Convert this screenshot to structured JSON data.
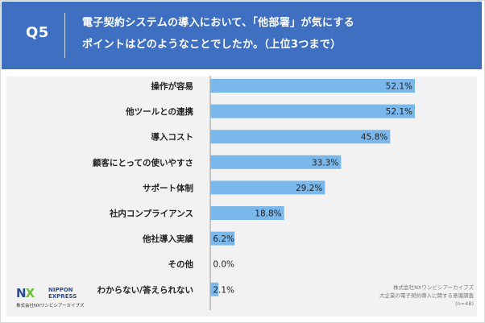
{
  "question": {
    "label": "Q5",
    "line1": "電子契約システムの導入において、「他部署」が気にする",
    "line2": "ポイントはどのようなことでしたか。（上位3つまで）"
  },
  "colors": {
    "header_bg": "#3f6fc0",
    "bar": "#7ab8ec",
    "card_bg": "#f2f2f2"
  },
  "chart_data": {
    "type": "bar",
    "orientation": "horizontal",
    "categories": [
      "操作が容易",
      "他ツールとの連携",
      "導入コスト",
      "顧客にとっての使いやすさ",
      "サポート体制",
      "社内コンプライアンス",
      "他社導入実績",
      "その他",
      "わからない/答えられない"
    ],
    "values": [
      52.1,
      52.1,
      45.8,
      33.3,
      29.2,
      18.8,
      6.2,
      0.0,
      2.1
    ],
    "value_labels": [
      "52.1%",
      "52.1%",
      "45.8%",
      "33.3%",
      "29.2%",
      "18.8%",
      "6.2%",
      "0.0%",
      "2.1%"
    ],
    "unit": "%",
    "xlim": [
      0,
      52.1
    ]
  },
  "logo": {
    "mark_n": "N",
    "mark_x": "X",
    "brand_line1": "NIPPON",
    "brand_line2": "EXPRESS",
    "company": "株式会社NXワンビシアーカイブズ"
  },
  "source": {
    "line1": "株式会社NXワンビシアーカイブズ",
    "line2": "大企業の電子契約導入に関する意識調査",
    "line3": "(n=48)"
  }
}
